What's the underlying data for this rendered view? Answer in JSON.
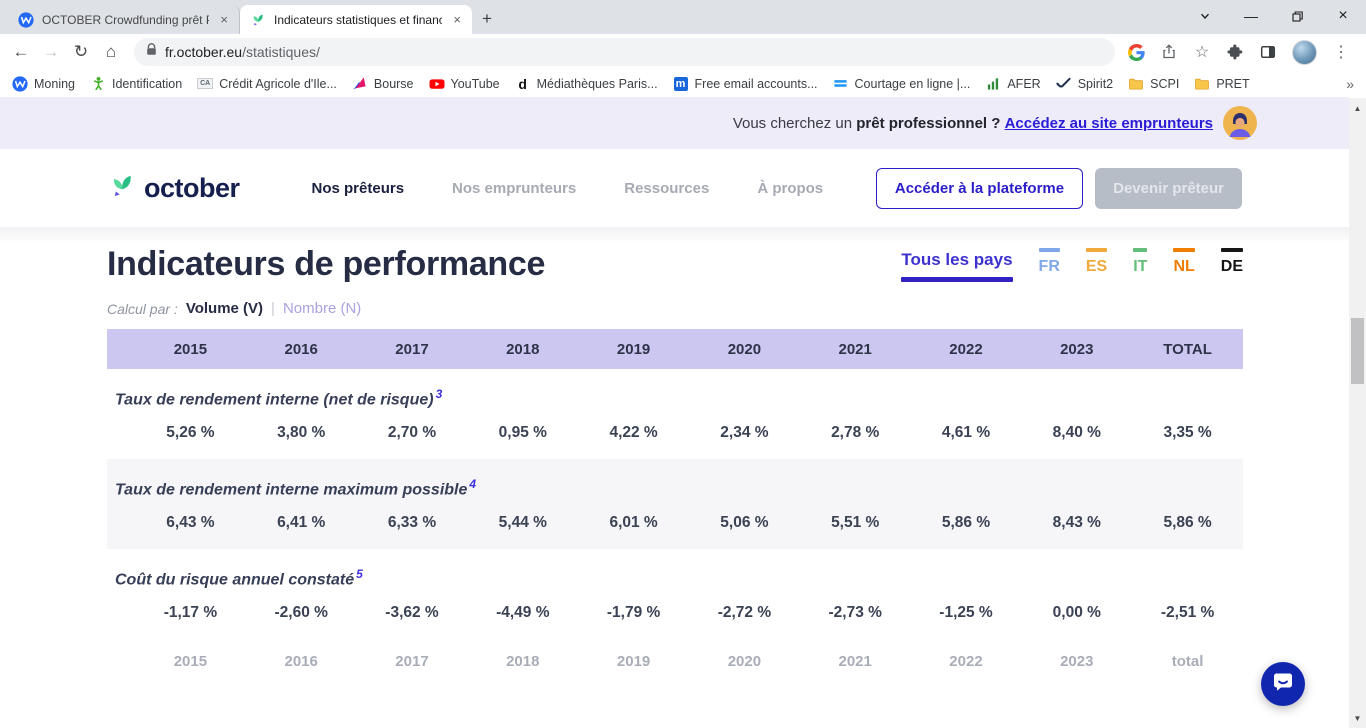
{
  "icons": {
    "back": "←",
    "forward": "→",
    "reload": "↻",
    "home": "⌂",
    "star": "☆",
    "menu": "⋮",
    "overflow": "»",
    "new_tab": "+",
    "close": "×",
    "minimize": "—",
    "scroll_up": "▲",
    "scroll_down": "▼"
  },
  "browser": {
    "tabs": [
      {
        "title": "OCTOBER Crowdfunding prêt PM",
        "active": false,
        "favicon": "moning"
      },
      {
        "title": "Indicateurs statistiques et financi",
        "active": true,
        "favicon": "october"
      }
    ],
    "toolbar": {
      "url_domain": "fr.october.eu",
      "url_path": "/statistiques/"
    },
    "bookmarks": [
      {
        "label": "Moning",
        "icon": "moning"
      },
      {
        "label": "Identification",
        "icon": "person"
      },
      {
        "label": "Crédit Agricole d'Ile...",
        "icon": "ca"
      },
      {
        "label": "Bourse",
        "icon": "bourse"
      },
      {
        "label": "YouTube",
        "icon": "youtube"
      },
      {
        "label": "Médiathèques Paris...",
        "icon": "dletter"
      },
      {
        "label": "Free email accounts...",
        "icon": "mletter"
      },
      {
        "label": "Courtage en ligne |...",
        "icon": "bars"
      },
      {
        "label": "AFER",
        "icon": "chart"
      },
      {
        "label": "Spirit2",
        "icon": "check"
      },
      {
        "label": "SCPI",
        "icon": "folder"
      },
      {
        "label": "PRET",
        "icon": "folder"
      }
    ]
  },
  "banner": {
    "text": "Vous cherchez un ",
    "bold": "prêt professionnel ?",
    "link": "Accédez au site emprunteurs"
  },
  "header": {
    "brand": "october",
    "nav": [
      {
        "label": "Nos prêteurs",
        "active": true
      },
      {
        "label": "Nos emprunteurs",
        "active": false
      },
      {
        "label": "Ressources",
        "active": false
      },
      {
        "label": "À propos",
        "active": false
      }
    ],
    "platform_button": "Accéder à la plateforme",
    "become_lender_button": "Devenir prêteur"
  },
  "page": {
    "title": "Indicateurs de performance",
    "country_tabs": [
      {
        "label": "Tous les pays",
        "color": "#3222C4",
        "active": true
      },
      {
        "label": "FR",
        "color": "#7FA8EB",
        "active": false
      },
      {
        "label": "ES",
        "color": "#F2A93B",
        "active": false
      },
      {
        "label": "IT",
        "color": "#63BE7B",
        "active": false
      },
      {
        "label": "NL",
        "color": "#F07C00",
        "active": false
      },
      {
        "label": "DE",
        "color": "#161616",
        "active": false
      }
    ],
    "calc_selector": {
      "label": "Calcul par :",
      "separator": "|",
      "options": [
        {
          "label": "Volume (V)",
          "selected": true
        },
        {
          "label": "Nombre (N)",
          "selected": false
        }
      ]
    }
  },
  "table": {
    "columns": [
      "2015",
      "2016",
      "2017",
      "2018",
      "2019",
      "2020",
      "2021",
      "2022",
      "2023",
      "TOTAL"
    ],
    "sections": [
      {
        "metric": "Taux de rendement interne (net de risque)",
        "footnote": "3",
        "shaded": false,
        "values": [
          "5,26 %",
          "3,80 %",
          "2,70 %",
          "0,95 %",
          "4,22 %",
          "2,34 %",
          "2,78 %",
          "4,61 %",
          "8,40 %",
          "3,35 %"
        ]
      },
      {
        "metric": "Taux de rendement interne maximum possible",
        "footnote": "4",
        "shaded": true,
        "values": [
          "6,43 %",
          "6,41 %",
          "6,33 %",
          "5,44 %",
          "6,01 %",
          "5,06 %",
          "5,51 %",
          "5,86 %",
          "8,43 %",
          "5,86 %"
        ]
      },
      {
        "metric": "Coût du risque annuel constaté",
        "footnote": "5",
        "shaded": false,
        "values": [
          "-1,17 %",
          "-2,60 %",
          "-3,62 %",
          "-4,49 %",
          "-1,79 %",
          "-2,72 %",
          "-2,73 %",
          "-1,25 %",
          "0,00 %",
          "-2,51 %"
        ]
      }
    ],
    "footer": [
      "2015",
      "2016",
      "2017",
      "2018",
      "2019",
      "2020",
      "2021",
      "2022",
      "2023",
      "total"
    ]
  }
}
